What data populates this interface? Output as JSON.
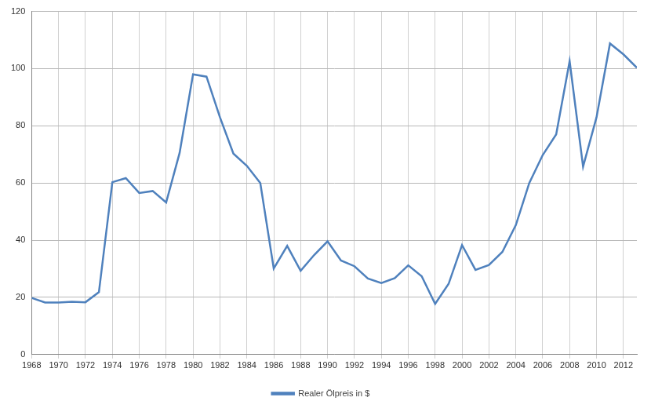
{
  "chart_data": {
    "type": "line",
    "categories": [
      "1968",
      null,
      "1970",
      null,
      "1972",
      null,
      "1974",
      null,
      "1976",
      null,
      "1978",
      null,
      "1980",
      null,
      "1982",
      null,
      "1984",
      null,
      "1986",
      null,
      "1988",
      null,
      "1990",
      null,
      "1992",
      null,
      "1994",
      null,
      "1996",
      null,
      "1998",
      null,
      "2000",
      null,
      "2002",
      null,
      "2004",
      null,
      "2006",
      null,
      "2008",
      null,
      "2010",
      null,
      "2012",
      null
    ],
    "series": [
      {
        "name": "Realer Ölpreis in $",
        "color": "#4f81bd",
        "marker": "none",
        "values": [
          19.8,
          18.2,
          18.2,
          18.5,
          18.3,
          21.8,
          60.3,
          61.7,
          56.5,
          57.2,
          53.2,
          70.5,
          98,
          97.2,
          83,
          70.3,
          66,
          60,
          30.1,
          38,
          29.3,
          34.8,
          39.6,
          32.9,
          30.9,
          26.6,
          25,
          26.7,
          31.2,
          27.4,
          17.7,
          24.7,
          38.3,
          29.6,
          31.3,
          35.9,
          45.3,
          60,
          69.8,
          77,
          102.6,
          65.7,
          83,
          108.8,
          105,
          100.3
        ]
      }
    ],
    "ylim": [
      0,
      120
    ],
    "yticks": [
      0,
      20,
      40,
      60,
      80,
      100,
      120
    ],
    "grid": true,
    "legend": "bottom"
  }
}
